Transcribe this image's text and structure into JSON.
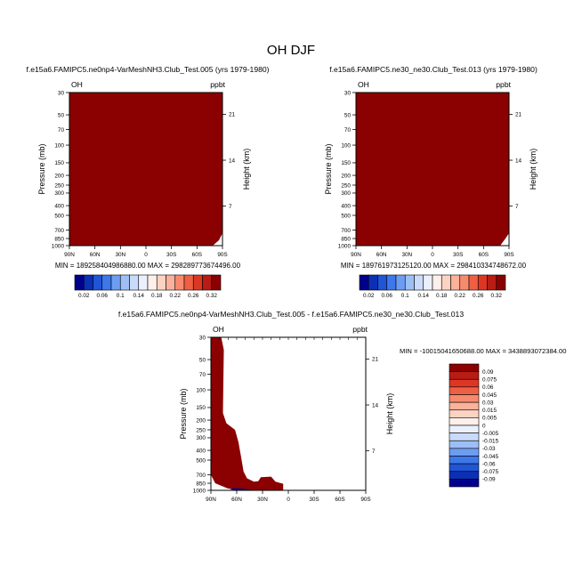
{
  "page_title": "OH DJF",
  "colors": {
    "fill_dark_red": "#8b0000",
    "deep_blue": "#00008b",
    "blue_ramp": [
      "#00008b",
      "#0b2fb5",
      "#1f55d6",
      "#3d78ea",
      "#6c9df2",
      "#9dbff6",
      "#c9dbf8",
      "#eaf1fc"
    ],
    "red_ramp": [
      "#fdf0ea",
      "#fcd3c2",
      "#fbb19a",
      "#f78a6d",
      "#ef5f43",
      "#dd3724",
      "#b81c14",
      "#8b0000"
    ]
  },
  "chart_data": [
    {
      "type": "heatmap",
      "title": "f.e15a6.FAMIPC5.ne0np4-VarMeshNH3.Club_Test.005 (yrs 1979-1980)",
      "left_label": "OH",
      "right_label": "ppbt",
      "ylabel": "Pressure (mb)",
      "ylabel_right": "Height (km)",
      "x_ticks": [
        "90N",
        "60N",
        "30N",
        "0",
        "30S",
        "60S",
        "90S"
      ],
      "x_range": [
        90,
        -90
      ],
      "y_ticks": [
        "30",
        "50",
        "70",
        "100",
        "150",
        "200",
        "250",
        "300",
        "400",
        "500",
        "700",
        "850",
        "1000"
      ],
      "y_range_mb": [
        30,
        1000
      ],
      "y_scale": "log",
      "height_ticks": [
        "21",
        "14",
        "7"
      ],
      "stats": "MIN = 189258404986880.00   MAX = 298289773674496.00",
      "colorbar_labels": [
        "0.02",
        "0.06",
        "0.1",
        "0.14",
        "0.18",
        "0.22",
        "0.26",
        "0.32"
      ],
      "field_note": "entire domain saturated at dark red"
    },
    {
      "type": "heatmap",
      "title": "f.e15a6.FAMIPC5.ne30_ne30.Club_Test.013 (yrs 1979-1980)",
      "left_label": "OH",
      "right_label": "ppbt",
      "ylabel": "Pressure (mb)",
      "ylabel_right": "Height (km)",
      "x_ticks": [
        "90N",
        "60N",
        "30N",
        "0",
        "30S",
        "60S",
        "90S"
      ],
      "x_range": [
        90,
        -90
      ],
      "y_ticks": [
        "30",
        "50",
        "70",
        "100",
        "150",
        "200",
        "250",
        "300",
        "400",
        "500",
        "700",
        "850",
        "1000"
      ],
      "y_range_mb": [
        30,
        1000
      ],
      "y_scale": "log",
      "height_ticks": [
        "21",
        "14",
        "7"
      ],
      "stats": "MIN = 189761973125120.00   MAX = 298410334748672.00",
      "colorbar_labels": [
        "0.02",
        "0.06",
        "0.1",
        "0.14",
        "0.18",
        "0.22",
        "0.26",
        "0.32"
      ],
      "field_note": "entire domain saturated at dark red"
    },
    {
      "type": "heatmap",
      "title": "f.e15a6.FAMIPC5.ne0np4-VarMeshNH3.Club_Test.005 - f.e15a6.FAMIPC5.ne30_ne30.Club_Test.013",
      "left_label": "OH",
      "right_label": "ppbt",
      "ylabel": "Pressure (mb)",
      "ylabel_right": "Height (km)",
      "x_ticks": [
        "90N",
        "60N",
        "30N",
        "0",
        "30S",
        "60S",
        "90S"
      ],
      "x_range": [
        90,
        -90
      ],
      "y_ticks": [
        "30",
        "50",
        "70",
        "100",
        "150",
        "200",
        "250",
        "300",
        "400",
        "500",
        "700",
        "850",
        "1000"
      ],
      "y_range_mb": [
        30,
        1000
      ],
      "y_scale": "log",
      "height_ticks": [
        "21",
        "14",
        "7"
      ],
      "stats": "MIN = -10015041650688.00   MAX = 3438893072384.00",
      "colorbar_labels": [
        "0.09",
        "0.075",
        "0.06",
        "0.045",
        "0.03",
        "0.015",
        "0.005",
        "0",
        "-0.005",
        "-0.015",
        "-0.03",
        "-0.045",
        "-0.06",
        "-0.075",
        "-0.09"
      ],
      "positive_region_lat_pressure": [
        [
          6,
          1000
        ],
        [
          6,
          860
        ],
        [
          15,
          820
        ],
        [
          20,
          730
        ],
        [
          32,
          740
        ],
        [
          35,
          810
        ],
        [
          40,
          820
        ],
        [
          48,
          760
        ],
        [
          52,
          650
        ],
        [
          55,
          460
        ],
        [
          58,
          330
        ],
        [
          62,
          250
        ],
        [
          72,
          215
        ],
        [
          76,
          170
        ],
        [
          75,
          40
        ],
        [
          78,
          30
        ],
        [
          90,
          30
        ],
        [
          90,
          700
        ],
        [
          85,
          850
        ],
        [
          70,
          960
        ],
        [
          45,
          1000
        ]
      ],
      "negative_region_lat_pressure": [
        [
          40,
          1000
        ],
        [
          45,
          985
        ],
        [
          55,
          960
        ],
        [
          64,
          950
        ],
        [
          68,
          980
        ],
        [
          60,
          1000
        ]
      ]
    }
  ]
}
